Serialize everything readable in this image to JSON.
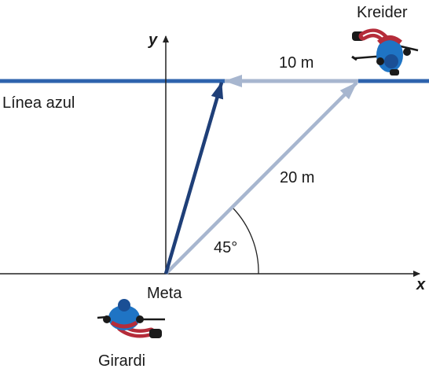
{
  "labels": {
    "y_axis": "y",
    "x_axis": "x",
    "blue_line": "Línea azul",
    "goal": "Meta",
    "player_top": "Kreider",
    "player_bottom": "Girardi",
    "short_vector": "10 m",
    "long_vector": "20 m",
    "angle": "45°"
  },
  "colors": {
    "blue_line": "#2e63ad",
    "resultant_vector": "#1f3f78",
    "light_vectors": "#a7b6cf",
    "axes": "#222222",
    "player_jersey": "#1f74c4",
    "player_pants": "#b52c3a",
    "player_helmet": "#1a4f95"
  }
}
